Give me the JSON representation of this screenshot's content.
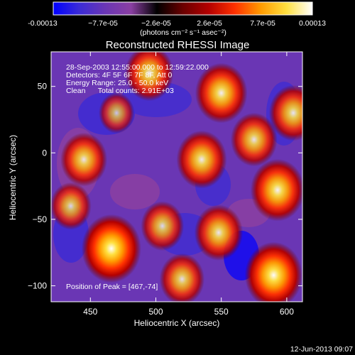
{
  "colorbar": {
    "ticks": [
      "-0.00013",
      "−7.7e-05",
      "−2.6e-05",
      "2.6e-05",
      "7.7e-05",
      "0.00013"
    ],
    "unit_label": "(photons cm⁻² s⁻¹ asec⁻²)",
    "colors": [
      "#0000ff",
      "#3b2bd6",
      "#6a36b4",
      "#8a3fa2",
      "#000000",
      "#6a0000",
      "#b40000",
      "#ff3000",
      "#ff9a00",
      "#ffe040",
      "#ffffff"
    ]
  },
  "image": {
    "title": "Reconstructed RHESSI Image",
    "annotations": [
      "28-Sep-2003 12:55:00.000 to 12:59:22.000",
      "Detectors: 4F 5F 6F 7F 8F, Att 0",
      "Energy Range: 25.0 - 50.0 keV",
      "Clean      Total counts: 2.91E+03"
    ],
    "peak_label": "Position of Peak = [467,-74]",
    "footer_date": "12-Jun-2013 09:07",
    "x_axis": {
      "label": "Heliocentric X (arcsec)",
      "range": [
        420,
        612
      ],
      "ticks": [
        "450",
        "500",
        "550",
        "600"
      ],
      "tick_values": [
        450,
        500,
        550,
        600
      ]
    },
    "y_axis": {
      "label": "Heliocentric Y (arcsec)",
      "range": [
        -112,
        76
      ],
      "ticks": [
        "50",
        "0",
        "−50",
        "−100"
      ],
      "tick_values": [
        50,
        0,
        -50,
        -100
      ]
    },
    "emission_sources": [
      {
        "x": 466,
        "y": -72,
        "level": 1.0
      },
      {
        "x": 590,
        "y": -92,
        "level": 0.95
      },
      {
        "x": 593,
        "y": -28,
        "level": 0.85
      },
      {
        "x": 550,
        "y": 45,
        "level": 0.8
      },
      {
        "x": 535,
        "y": -5,
        "level": 0.75
      },
      {
        "x": 495,
        "y": 60,
        "level": 0.7
      },
      {
        "x": 445,
        "y": -5,
        "level": 0.65
      },
      {
        "x": 548,
        "y": -60,
        "level": 0.7
      },
      {
        "x": 520,
        "y": -95,
        "level": 0.6
      },
      {
        "x": 575,
        "y": 10,
        "level": 0.65
      },
      {
        "x": 505,
        "y": -55,
        "level": 0.55
      },
      {
        "x": 605,
        "y": 30,
        "level": 0.7
      },
      {
        "x": 435,
        "y": -40,
        "level": 0.5
      },
      {
        "x": 470,
        "y": 30,
        "level": 0.35
      }
    ]
  }
}
